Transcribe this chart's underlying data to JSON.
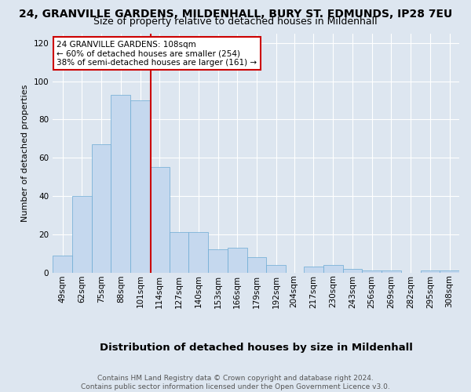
{
  "title1": "24, GRANVILLE GARDENS, MILDENHALL, BURY ST. EDMUNDS, IP28 7EU",
  "title2": "Size of property relative to detached houses in Mildenhall",
  "xlabel": "Distribution of detached houses by size in Mildenhall",
  "ylabel": "Number of detached properties",
  "bin_labels": [
    "49sqm",
    "62sqm",
    "75sqm",
    "88sqm",
    "101sqm",
    "114sqm",
    "127sqm",
    "140sqm",
    "153sqm",
    "166sqm",
    "179sqm",
    "192sqm",
    "204sqm",
    "217sqm",
    "230sqm",
    "243sqm",
    "256sqm",
    "269sqm",
    "282sqm",
    "295sqm",
    "308sqm"
  ],
  "bin_centers": [
    49,
    62,
    75,
    88,
    101,
    114,
    127,
    140,
    153,
    166,
    179,
    192,
    204,
    217,
    230,
    243,
    256,
    269,
    282,
    295,
    308
  ],
  "bar_heights": [
    9,
    40,
    67,
    93,
    90,
    55,
    21,
    21,
    12,
    13,
    8,
    4,
    0,
    3,
    4,
    2,
    1,
    1,
    0,
    1,
    1
  ],
  "bar_color": "#c5d8ee",
  "bar_edge_color": "#6baad4",
  "bin_width": 13,
  "vline_x": 108,
  "vline_color": "#cc0000",
  "ylim": [
    0,
    125
  ],
  "yticks": [
    0,
    20,
    40,
    60,
    80,
    100,
    120
  ],
  "annotation_title": "24 GRANVILLE GARDENS: 108sqm",
  "annotation_line1": "← 60% of detached houses are smaller (254)",
  "annotation_line2": "38% of semi-detached houses are larger (161) →",
  "annotation_box_facecolor": "#ffffff",
  "annotation_box_edgecolor": "#cc0000",
  "bg_color": "#dde6f0",
  "plot_bg_color": "#dde6f0",
  "footer1": "Contains HM Land Registry data © Crown copyright and database right 2024.",
  "footer2": "Contains public sector information licensed under the Open Government Licence v3.0.",
  "grid_color": "#ffffff",
  "title1_fontsize": 10,
  "title2_fontsize": 9,
  "xlabel_fontsize": 9.5,
  "ylabel_fontsize": 8,
  "tick_fontsize": 7.5,
  "annotation_fontsize": 7.5,
  "footer_fontsize": 6.5
}
